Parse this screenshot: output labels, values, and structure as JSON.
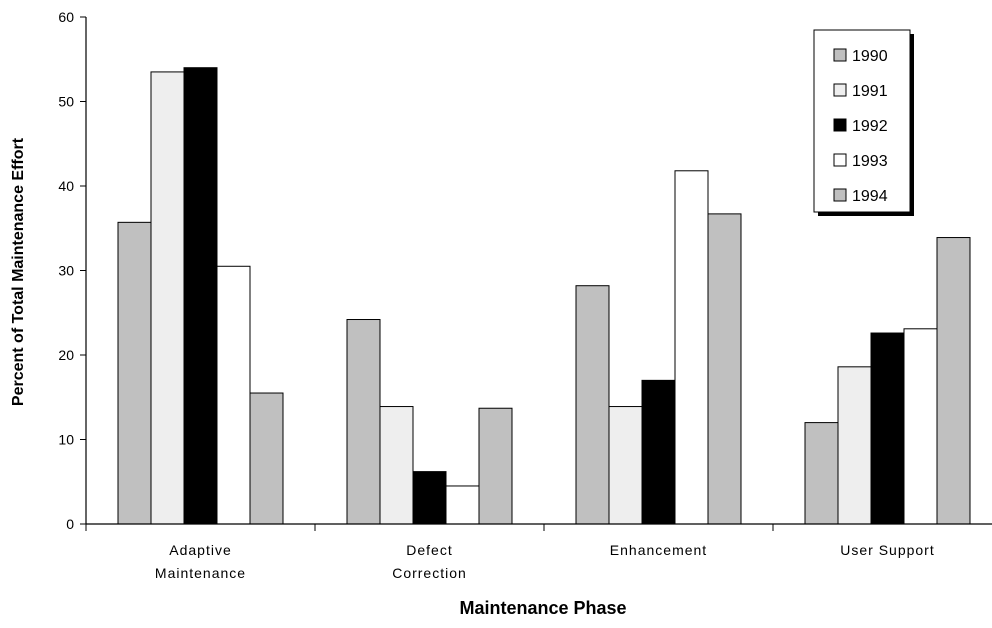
{
  "chart_data": {
    "type": "bar",
    "title": "",
    "xlabel": "Maintenance Phase",
    "ylabel": "Percent of Total Maintenance Effort",
    "ylim": [
      0,
      60
    ],
    "yticks": [
      "0",
      "10",
      "20",
      "30",
      "40",
      "50",
      "60"
    ],
    "categories": [
      [
        "Adaptive",
        "Maintenance"
      ],
      [
        "Defect",
        "Correction"
      ],
      [
        "Enhancement"
      ],
      [
        "User Support"
      ]
    ],
    "series": [
      {
        "name": "1990",
        "color": "#c0c0c0",
        "values": [
          35.7,
          24.2,
          28.2,
          12.0
        ]
      },
      {
        "name": "1991",
        "color": "#eeeeee",
        "values": [
          53.5,
          13.9,
          13.9,
          18.6
        ]
      },
      {
        "name": "1992",
        "color": "#000000",
        "values": [
          54.0,
          6.2,
          17.0,
          22.6
        ]
      },
      {
        "name": "1993",
        "color": "#ffffff",
        "values": [
          30.5,
          4.5,
          41.8,
          23.1
        ]
      },
      {
        "name": "1994",
        "color": "#c0c0c0",
        "values": [
          15.5,
          13.7,
          36.7,
          33.9
        ]
      }
    ],
    "grid": false,
    "legend_position": "top-right"
  }
}
